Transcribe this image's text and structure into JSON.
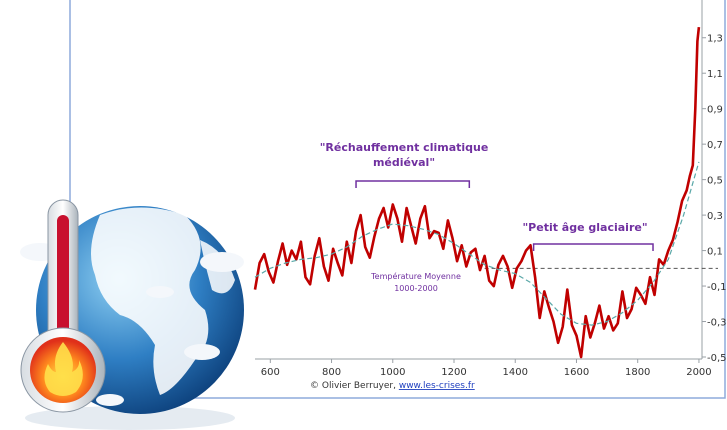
{
  "chart_data": {
    "type": "line",
    "title": "",
    "xlabel": "",
    "ylabel": "",
    "xlim": [
      550,
      2010
    ],
    "ylim": [
      -0.5,
      1.4
    ],
    "x_ticks": [
      600,
      800,
      1000,
      1200,
      1400,
      1600,
      1800,
      2000
    ],
    "y_ticks": [
      1.3,
      1.1,
      0.9,
      0.7,
      0.5,
      0.3,
      0.1,
      -0.1,
      -0.3,
      -0.5
    ],
    "y_tick_labels": [
      "1,3",
      "1,1",
      "0,9",
      "0,7",
      "0,5",
      "0,3",
      "0,1",
      "-0,1",
      "-0,3",
      "-0,5"
    ],
    "x_tick_labels": [
      "600",
      "800",
      "1000",
      "1200",
      "1400",
      "1600",
      "1800",
      "2000"
    ],
    "grid": false,
    "series": [
      {
        "name": "",
        "color": "#c00000",
        "x": [
          550,
          565,
          580,
          595,
          610,
          625,
          640,
          655,
          670,
          685,
          700,
          715,
          730,
          745,
          760,
          775,
          790,
          805,
          820,
          835,
          850,
          865,
          880,
          895,
          910,
          925,
          940,
          955,
          970,
          985,
          1000,
          1015,
          1030,
          1045,
          1060,
          1075,
          1090,
          1105,
          1120,
          1135,
          1150,
          1165,
          1180,
          1195,
          1210,
          1225,
          1240,
          1255,
          1270,
          1285,
          1300,
          1315,
          1330,
          1345,
          1360,
          1375,
          1390,
          1405,
          1420,
          1435,
          1450,
          1465,
          1480,
          1495,
          1510,
          1525,
          1540,
          1555,
          1570,
          1585,
          1600,
          1615,
          1630,
          1645,
          1660,
          1675,
          1690,
          1705,
          1720,
          1735,
          1750,
          1765,
          1780,
          1795,
          1810,
          1825,
          1840,
          1855,
          1870,
          1885,
          1900,
          1915,
          1930,
          1945,
          1960,
          1970,
          1980,
          1988,
          1995,
          2000
        ],
        "y": [
          -0.12,
          0.03,
          0.08,
          -0.02,
          -0.08,
          0.04,
          0.14,
          0.02,
          0.1,
          0.05,
          0.15,
          -0.05,
          -0.09,
          0.07,
          0.17,
          0.01,
          -0.07,
          0.11,
          0.03,
          -0.04,
          0.15,
          0.03,
          0.21,
          0.3,
          0.12,
          0.06,
          0.18,
          0.28,
          0.34,
          0.23,
          0.36,
          0.28,
          0.15,
          0.34,
          0.24,
          0.14,
          0.28,
          0.35,
          0.17,
          0.21,
          0.2,
          0.11,
          0.27,
          0.17,
          0.04,
          0.13,
          0.01,
          0.09,
          0.11,
          -0.01,
          0.07,
          -0.07,
          -0.1,
          0.02,
          0.07,
          0.01,
          -0.11,
          0.0,
          0.04,
          0.1,
          0.13,
          -0.05,
          -0.28,
          -0.13,
          -0.22,
          -0.3,
          -0.42,
          -0.33,
          -0.12,
          -0.32,
          -0.38,
          -0.5,
          -0.27,
          -0.39,
          -0.31,
          -0.21,
          -0.34,
          -0.27,
          -0.35,
          -0.31,
          -0.13,
          -0.28,
          -0.23,
          -0.11,
          -0.15,
          -0.2,
          -0.05,
          -0.15,
          0.05,
          0.02,
          0.1,
          0.16,
          0.26,
          0.38,
          0.44,
          0.52,
          0.58,
          0.9,
          1.28,
          1.36
        ]
      },
      {
        "name": "",
        "color": "#5aa8a8",
        "dashed": true,
        "x": [
          550,
          600,
          650,
          700,
          750,
          800,
          850,
          900,
          950,
          1000,
          1050,
          1100,
          1150,
          1200,
          1250,
          1300,
          1350,
          1400,
          1450,
          1500,
          1550,
          1600,
          1650,
          1700,
          1750,
          1800,
          1850,
          1900,
          1950,
          2000
        ],
        "y": [
          -0.05,
          0.0,
          0.03,
          0.05,
          0.06,
          0.08,
          0.12,
          0.18,
          0.22,
          0.25,
          0.24,
          0.22,
          0.19,
          0.14,
          0.08,
          0.02,
          -0.01,
          -0.03,
          -0.08,
          -0.17,
          -0.26,
          -0.31,
          -0.32,
          -0.3,
          -0.25,
          -0.18,
          -0.08,
          0.05,
          0.3,
          0.6
        ]
      }
    ],
    "reference_line": {
      "y": 0.0,
      "label_line1": "Température Moyenne",
      "label_line2": "1000-2000"
    },
    "annotations": {
      "medieval_line1": "\"Réchauffement climatique",
      "medieval_line2": "médiéval\"",
      "medieval_range": [
        880,
        1250
      ],
      "ice_age": "\"Petit âge glaciaire\"",
      "ice_age_range": [
        1460,
        1850
      ],
      "credit_prefix": "© Olivier Berruyer, ",
      "credit_link": "www.les-crises.fr"
    }
  },
  "colors": {
    "frame": "#8eaadb",
    "label": "#7030a0",
    "axis_text": "#333333"
  },
  "decor": {
    "icon": "globe-thermometer-icon"
  }
}
